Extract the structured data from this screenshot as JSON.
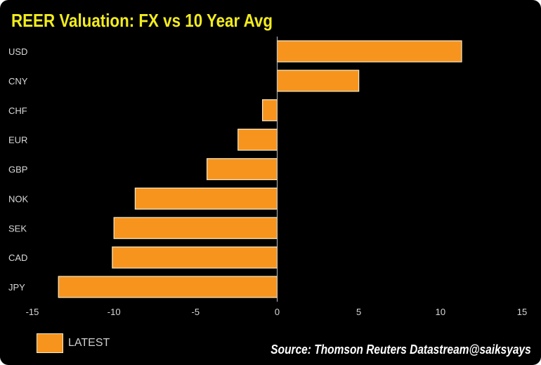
{
  "colors": {
    "bar": "#f7941d",
    "bar_border": "#f5e9c8",
    "background": "#000000",
    "title": "#f2ec1e"
  },
  "source": "Source: Thomson Reuters Datastream@saiksyays",
  "chart_data": {
    "type": "bar",
    "orientation": "horizontal",
    "title": "REER Valuation: FX vs 10 Year Avg",
    "categories": [
      "USD",
      "CNY",
      "CHF",
      "EUR",
      "GBP",
      "NOK",
      "SEK",
      "CAD",
      "JPY"
    ],
    "series": [
      {
        "name": "LATEST",
        "values": [
          11.3,
          5.0,
          -0.9,
          -2.4,
          -4.3,
          -8.7,
          -10.0,
          -10.1,
          -13.4
        ]
      }
    ],
    "xlim": [
      -15,
      15
    ],
    "xticks": [
      "-15",
      "-10",
      "-5",
      "0",
      "5",
      "10",
      "15"
    ],
    "xtick_values": [
      -15,
      -10,
      -5,
      0,
      5,
      10,
      15
    ],
    "grid": false,
    "legend_position": "bottom-left"
  }
}
